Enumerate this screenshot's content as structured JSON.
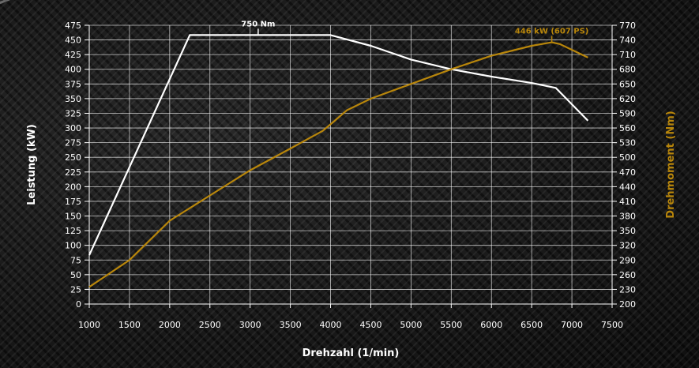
{
  "chart_data": {
    "type": "line",
    "xlabel": "Drehzahl (1/min)",
    "ylabel_left": "Leistung (kW)",
    "ylabel_right": "Drehmoment (Nm)",
    "xlim": [
      1000,
      7500
    ],
    "ylim_left": [
      0,
      475
    ],
    "ylim_right": [
      200,
      770
    ],
    "x_ticks": [
      1000,
      1500,
      2000,
      2500,
      3000,
      3500,
      4000,
      4500,
      5000,
      5500,
      6000,
      6500,
      7000,
      7500
    ],
    "y_left_ticks": [
      0,
      25,
      50,
      75,
      100,
      125,
      150,
      175,
      200,
      225,
      250,
      275,
      300,
      325,
      350,
      375,
      400,
      425,
      450,
      475
    ],
    "y_right_ticks": [
      200,
      230,
      260,
      290,
      320,
      350,
      380,
      410,
      440,
      470,
      500,
      530,
      560,
      590,
      620,
      650,
      680,
      710,
      740,
      770
    ],
    "grid": true,
    "series": [
      {
        "axis": "right",
        "color": "#ffffff",
        "x": [
          1000,
          2250,
          4000,
          4500,
          5000,
          5500,
          6000,
          6500,
          6800,
          7200
        ],
        "values": [
          300,
          750,
          750,
          728,
          700,
          680,
          665,
          652,
          642,
          575
        ]
      },
      {
        "axis": "left",
        "color": "#b8860b",
        "x": [
          1000,
          1500,
          2000,
          2500,
          3000,
          3500,
          3900,
          4050,
          4200,
          4500,
          5000,
          5500,
          6000,
          6500,
          6750,
          6850,
          7200
        ],
        "values": [
          29,
          75,
          142,
          185,
          228,
          265,
          295,
          312,
          330,
          350,
          375,
          400,
          423,
          440,
          446,
          443,
          420
        ]
      }
    ],
    "annotations": [
      {
        "text": "750 Nm",
        "x": 3100,
        "axis": "right",
        "value": 750,
        "color": "#ffffff"
      },
      {
        "text": "446 kW (607 PS)",
        "x": 6750,
        "axis": "left",
        "value": 446,
        "color": "#b8860b"
      }
    ]
  }
}
